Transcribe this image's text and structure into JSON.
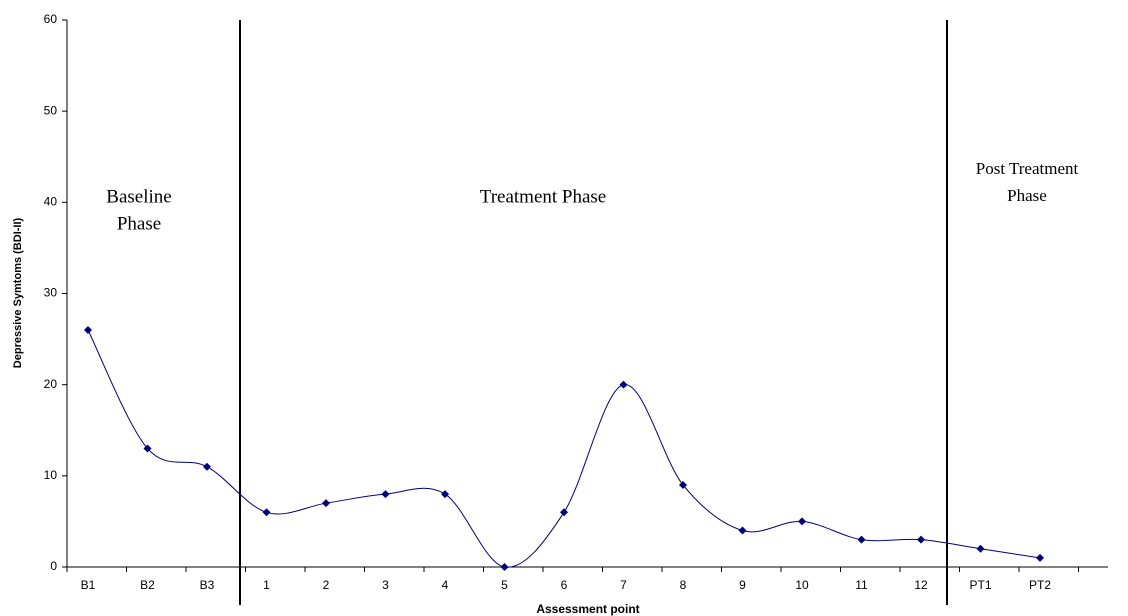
{
  "chart_data": {
    "type": "line",
    "y_label": "Depressive Symtoms (BDI-II)",
    "x_label": "Assessment point",
    "categories": [
      "B1",
      "B2",
      "B3",
      "1",
      "2",
      "3",
      "4",
      "5",
      "6",
      "7",
      "8",
      "9",
      "10",
      "11",
      "12",
      "PT1",
      "PT2"
    ],
    "series": [
      {
        "color": "#000080",
        "values": [
          26,
          13,
          11,
          6,
          7,
          8,
          8,
          0,
          6,
          20,
          9,
          4,
          5,
          3,
          3,
          2,
          1
        ]
      }
    ],
    "ylim": [
      0,
      60
    ],
    "yticks": [
      0,
      10,
      20,
      30,
      40,
      50,
      60
    ],
    "grid": false,
    "annotations": [
      [
        "Baseline",
        "Phase"
      ],
      [
        "Treatment Phase"
      ],
      [
        "Post Treatment",
        "Phase"
      ]
    ]
  }
}
